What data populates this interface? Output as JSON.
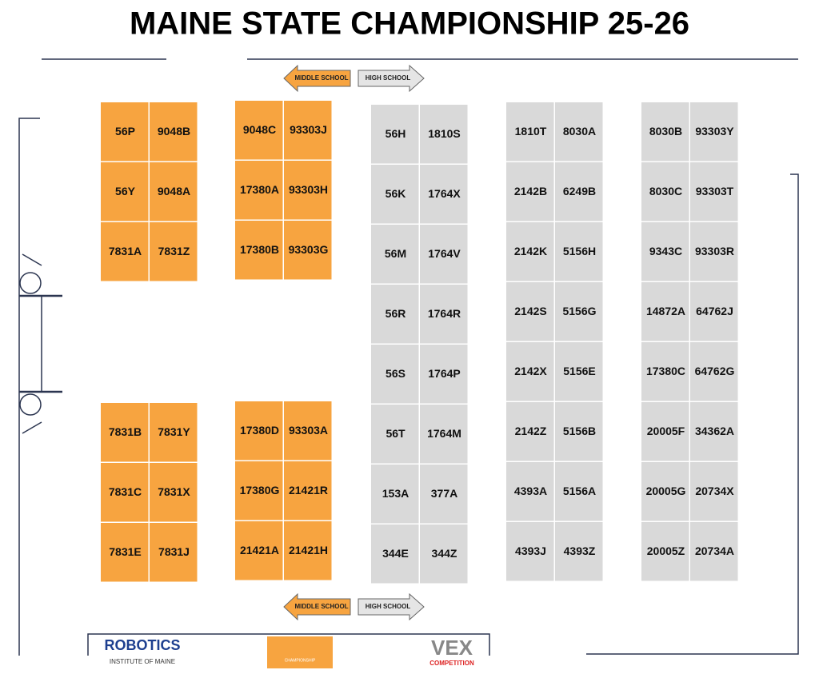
{
  "title": "MAINE STATE CHAMPIONSHIP 25-26",
  "legend": {
    "middle_school": "MIDDLE SCHOOL",
    "high_school": "HIGH SCHOOL"
  },
  "blocks": [
    {
      "color": "#f7a440",
      "rows": [
        [
          "56P",
          "9048B"
        ],
        [
          "56Y",
          "9048A"
        ],
        [
          "7831A",
          "7831Z"
        ]
      ]
    },
    {
      "color": "#f7a440",
      "rows": [
        [
          "9048C",
          "93303J"
        ],
        [
          "17380A",
          "93303H"
        ],
        [
          "17380B",
          "93303G"
        ]
      ]
    },
    {
      "color": "#f7a440",
      "rows": [
        [
          "7831B",
          "7831Y"
        ],
        [
          "7831C",
          "7831X"
        ],
        [
          "7831E",
          "7831J"
        ]
      ]
    },
    {
      "color": "#f7a440",
      "rows": [
        [
          "17380D",
          "93303A"
        ],
        [
          "17380G",
          "21421R"
        ],
        [
          "21421A",
          "21421H"
        ]
      ]
    },
    {
      "color": "#d9d9d9",
      "rows": [
        [
          "56H",
          "1810S"
        ],
        [
          "56K",
          "1764X"
        ],
        [
          "56M",
          "1764V"
        ],
        [
          "56R",
          "1764R"
        ],
        [
          "56S",
          "1764P"
        ],
        [
          "56T",
          "1764M"
        ],
        [
          "153A",
          "377A"
        ],
        [
          "344E",
          "344Z"
        ]
      ]
    },
    {
      "color": "#d9d9d9",
      "rows": [
        [
          "1810T",
          "8030A"
        ],
        [
          "2142B",
          "6249B"
        ],
        [
          "2142K",
          "5156H"
        ],
        [
          "2142S",
          "5156G"
        ],
        [
          "2142X",
          "5156E"
        ],
        [
          "2142Z",
          "5156B"
        ],
        [
          "4393A",
          "5156A"
        ],
        [
          "4393J",
          "4393Z"
        ]
      ]
    },
    {
      "color": "#d9d9d9",
      "rows": [
        [
          "8030B",
          "93303Y"
        ],
        [
          "8030C",
          "93303T"
        ],
        [
          "9343C",
          "93303R"
        ],
        [
          "14872A",
          "64762J"
        ],
        [
          "17380C",
          "64762G"
        ],
        [
          "20005F",
          "34362A"
        ],
        [
          "20005G",
          "20734X"
        ],
        [
          "20005Z",
          "20734A"
        ]
      ]
    }
  ],
  "logos": {
    "robotics": "ROBOTICS",
    "institute": "INSTITUTE OF MAINE",
    "vex": "VEX",
    "competition": "COMPETITION",
    "championship": "CHAMPIONSHIP"
  }
}
